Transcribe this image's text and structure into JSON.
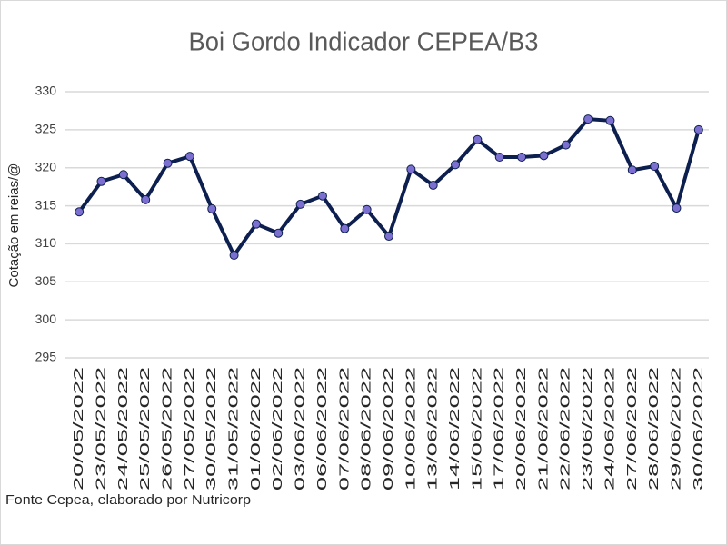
{
  "chart_data": {
    "type": "line",
    "title": "Boi Gordo Indicador CEPEA/B3",
    "y_label": "Cotação em reias/@",
    "note": "Fonte Cepea, elaborado por Nutricorp",
    "categories": [
      "20/05/2022",
      "23/05/2022",
      "24/05/2022",
      "25/05/2022",
      "26/05/2022",
      "27/05/2022",
      "30/05/2022",
      "31/05/2022",
      "01/06/2022",
      "02/06/2022",
      "03/06/2022",
      "06/06/2022",
      "07/06/2022",
      "08/06/2022",
      "09/06/2022",
      "10/06/2022",
      "13/06/2022",
      "14/06/2022",
      "15/06/2022",
      "17/06/2022",
      "20/06/2022",
      "21/06/2022",
      "22/06/2022",
      "23/06/2022",
      "24/06/2022",
      "27/06/2022",
      "28/06/2022",
      "29/06/2022",
      "30/06/2022"
    ],
    "series": [
      {
        "name": "Boi Gordo",
        "color": "#0d1f4f",
        "marker_color": "#7b6fd0",
        "values": [
          314.2,
          318.2,
          319.1,
          315.8,
          320.6,
          321.5,
          314.6,
          308.5,
          312.6,
          311.4,
          315.2,
          316.3,
          312.0,
          314.5,
          311.0,
          319.8,
          317.7,
          320.4,
          323.7,
          321.4,
          321.4,
          321.6,
          323.0,
          326.4,
          326.2,
          319.7,
          320.2,
          314.7,
          325.0
        ]
      }
    ],
    "ylim": [
      295,
      330
    ],
    "yticks": [
      295,
      300,
      305,
      310,
      315,
      320,
      325,
      330
    ],
    "grid": true
  }
}
